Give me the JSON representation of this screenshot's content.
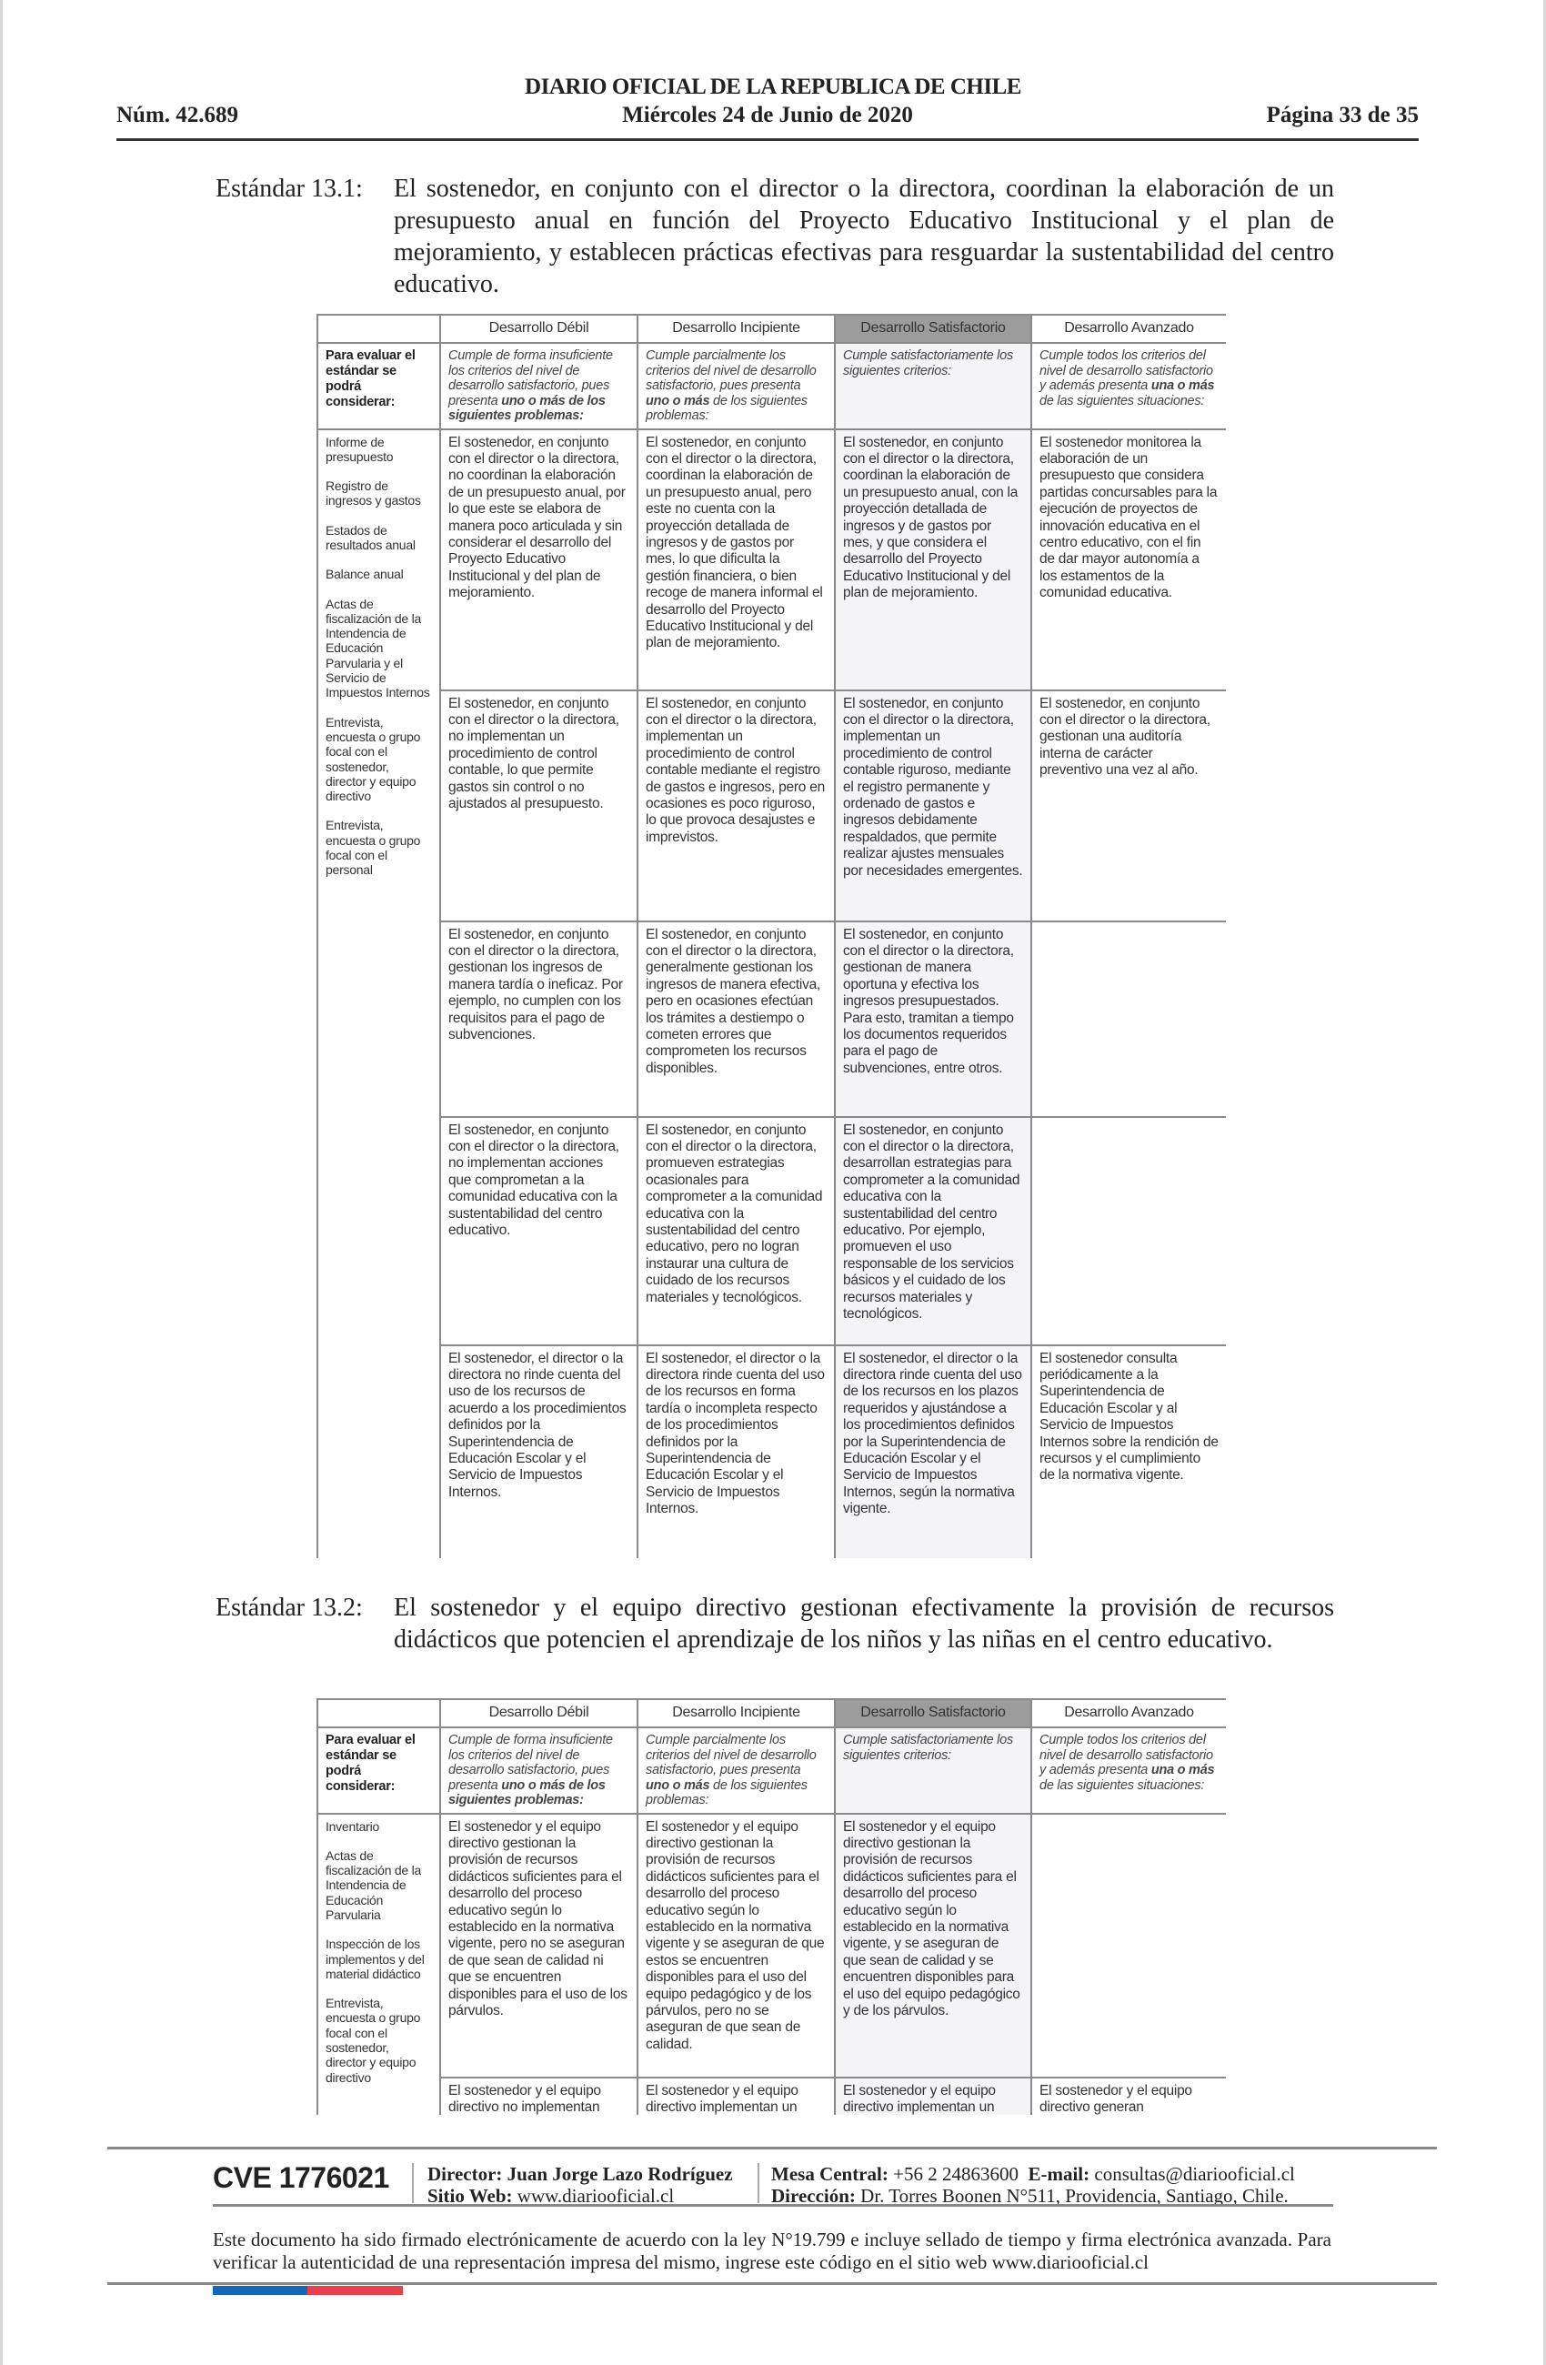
{
  "header": {
    "publication": "DIARIO OFICIAL DE LA REPUBLICA DE CHILE",
    "number": "Núm. 42.689",
    "date": "Miércoles 24 de Junio de 2020",
    "page": "Página 33 de 35"
  },
  "standard_13_1": {
    "label": "Estándar 13.1:",
    "text": "El sostenedor, en conjunto con el director o la directora, coordinan la elaboración de un presupuesto anual en función del Proyecto Educativo Institucional y el plan de mejoramiento, y establecen prácticas efectivas para resguardar la sustentabilidad del centro educativo."
  },
  "standard_13_2": {
    "label": "Estándar 13.2:",
    "text": "El sostenedor y el equipo directivo gestionan efectivamente la provisión de recursos didácticos que potencien el aprendizaje de los niños y las niñas en el centro educativo."
  },
  "colors": {
    "header_satisfactorio": "#9c9c9c",
    "column_satisfactorio": "#f4f4f6",
    "flag_blue": "#1565b8",
    "flag_red": "#e8404a"
  },
  "table_headers": [
    "Desarrollo Débil",
    "Desarrollo Incipiente",
    "Desarrollo Satisfactorio",
    "Desarrollo Avanzado"
  ],
  "table_lead": "Para evaluar el estándar se podrá considerar:",
  "criteria": [
    [
      {
        "t": "Cumple de forma insuficiente los criterios del nivel de desarrollo satisfactorio, pues presenta "
      },
      {
        "t": "uno o más de los siguientes problemas:",
        "b": true
      }
    ],
    [
      {
        "t": "Cumple parcialmente los criterios del nivel de desarrollo satisfactorio, pues presenta "
      },
      {
        "t": "uno o más",
        "b": true
      },
      {
        "t": " de los siguientes problemas:"
      }
    ],
    [
      {
        "t": "Cumple satisfactoriamente los siguientes criterios:"
      }
    ],
    [
      {
        "t": "Cumple todos los criterios del nivel de desarrollo satisfactorio y además presenta "
      },
      {
        "t": "una o más",
        "b": true
      },
      {
        "t": " de las siguientes situaciones:"
      }
    ]
  ],
  "table1": {
    "evidence": [
      "Informe de presupuesto",
      "Registro de ingresos y gastos",
      "Estados de resultados anual",
      "Balance anual",
      "Actas de fiscalización de la Intendencia de Educación Parvularia y el Servicio de Impuestos Internos",
      "Entrevista, encuesta o grupo focal con el sostenedor, director y equipo directivo",
      "Entrevista, encuesta o grupo focal con el personal"
    ],
    "rows": [
      [
        "El sostenedor, en conjunto con el director o la directora, no coordinan la elaboración de un presupuesto anual, por lo que este se elabora de manera poco articulada y sin considerar el desarrollo del Proyecto Educativo Institucional y del plan de mejoramiento.",
        "El sostenedor, en conjunto con el director o la directora, coordinan la elaboración de un presupuesto anual, pero este no cuenta con la proyección detallada de ingresos y de gastos por mes, lo que dificulta la gestión financiera, o bien recoge de manera informal el desarrollo del Proyecto Educativo Institucional y del plan de mejoramiento.",
        "El sostenedor, en conjunto con el director o la directora, coordinan la elaboración de un presupuesto anual, con la proyección detallada de ingresos y de gastos por mes, y que considera el desarrollo del Proyecto Educativo Institucional y del plan de mejoramiento.",
        "El sostenedor monitorea la elaboración de un presupuesto que considera partidas concursables para la ejecución de proyectos de innovación educativa en el centro educativo, con el fin de dar mayor autonomía a los estamentos de la comunidad educativa."
      ],
      [
        "El sostenedor, en conjunto con el director o la directora, no implementan un procedimiento de control contable, lo que permite gastos sin control o no ajustados al presupuesto.",
        "El sostenedor, en conjunto con el director o la directora, implementan un procedimiento de control contable mediante el registro de gastos e ingresos, pero en ocasiones es poco riguroso, lo que provoca desajustes e imprevistos.",
        "El sostenedor, en conjunto con el director o la directora, implementan un procedimiento de control contable riguroso, mediante el registro permanente y ordenado de gastos e ingresos debidamente respaldados, que permite realizar ajustes mensuales por necesidades emergentes.",
        "El sostenedor, en conjunto con el director o la directora, gestionan una auditoría interna de carácter preventivo una vez al año."
      ],
      [
        "El sostenedor, en conjunto con el director o la directora, gestionan los ingresos de manera tardía o ineficaz. Por ejemplo, no cumplen con los requisitos para el pago de subvenciones.",
        "El sostenedor, en conjunto con el director o la directora, generalmente gestionan los ingresos de manera efectiva, pero en ocasiones efectúan los trámites a destiempo o cometen errores que comprometen los recursos disponibles.",
        "El sostenedor, en conjunto con el director o la directora, gestionan de manera oportuna y efectiva los ingresos presupuestados. Para esto, tramitan a tiempo los documentos requeridos para el pago de subvenciones, entre otros.",
        ""
      ],
      [
        "El sostenedor, en conjunto con el director o la directora, no implementan acciones que comprometan a la comunidad educativa con la sustentabilidad del centro educativo.",
        "El sostenedor, en conjunto con el director o la directora, promueven estrategias ocasionales para comprometer a la comunidad educativa con la sustentabilidad del centro educativo, pero no logran instaurar una cultura de cuidado de los recursos materiales y tecnológicos.",
        "El sostenedor, en conjunto con el director o la directora, desarrollan estrategias para comprometer a la comunidad educativa con la sustentabilidad del centro educativo. Por ejemplo, promueven el uso responsable de los servicios básicos y el cuidado de los recursos materiales y tecnológicos.",
        ""
      ],
      [
        "El sostenedor, el director o la directora no rinde cuenta del uso de los recursos de acuerdo a los procedimientos definidos por la Superintendencia de Educación Escolar y el Servicio de Impuestos Internos.",
        "El sostenedor, el director o la directora rinde cuenta del uso de los recursos en forma tardía o incompleta respecto de los procedimientos definidos por la Superintendencia de Educación Escolar y el Servicio de Impuestos Internos.",
        "El sostenedor, el director o la directora rinde cuenta del uso de los recursos en los plazos requeridos y ajustándose a los procedimientos definidos por la Superintendencia de Educación Escolar y el Servicio de Impuestos Internos, según la normativa vigente.",
        "El sostenedor consulta periódicamente a la Superintendencia de Educación Escolar y al Servicio de Impuestos Internos sobre la rendición de recursos y el cumplimiento de la normativa vigente."
      ]
    ]
  },
  "table2": {
    "evidence": [
      "Inventario",
      "Actas de fiscalización de la Intendencia de Educación Parvularia",
      "Inspección de los implementos y del material didáctico",
      "Entrevista, encuesta o grupo focal con el sostenedor, director y equipo directivo"
    ],
    "rows": [
      [
        "El sostenedor y el equipo directivo gestionan la provisión de recursos didácticos suficientes para el desarrollo del proceso educativo según lo establecido en la normativa vigente, pero no se aseguran de que sean de calidad ni que se encuentren disponibles para el uso de los párvulos.",
        "El sostenedor y el equipo directivo gestionan la provisión de recursos didácticos suficientes para el desarrollo del proceso educativo según lo establecido en la normativa vigente y se aseguran de que estos se encuentren disponibles para el uso del equipo pedagógico y de los párvulos, pero no se aseguran de que sean de calidad.",
        "El sostenedor y el equipo directivo gestionan la provisión de recursos didácticos suficientes para el desarrollo del proceso educativo según lo establecido en la normativa vigente, y se aseguran de que sean de calidad y se encuentren disponibles para el uso del equipo pedagógico y de los párvulos.",
        ""
      ],
      [
        "El sostenedor y el equipo directivo no implementan",
        "El sostenedor y el equipo directivo implementan un",
        "El sostenedor y el equipo directivo implementan un",
        "El sostenedor y el equipo directivo generan"
      ]
    ]
  },
  "footer": {
    "cve": "CVE 1776021",
    "director_label": "Director:",
    "director": "Juan Jorge Lazo Rodríguez",
    "web_label": "Sitio Web:",
    "web": "www.diariooficial.cl",
    "phone_label": "Mesa Central:",
    "phone": "+56 2 24863600",
    "email_label": "E-mail:",
    "email": "consultas@diariooficial.cl",
    "address_label": "Dirección:",
    "address": "Dr. Torres Boonen N°511, Providencia, Santiago, Chile.",
    "legal": "Este documento ha sido firmado electrónicamente de acuerdo con la ley N°19.799 e incluye sellado de tiempo y firma electrónica avanzada. Para verificar la autenticidad de una representación impresa del mismo, ingrese este código en el sitio web www.diariooficial.cl"
  }
}
